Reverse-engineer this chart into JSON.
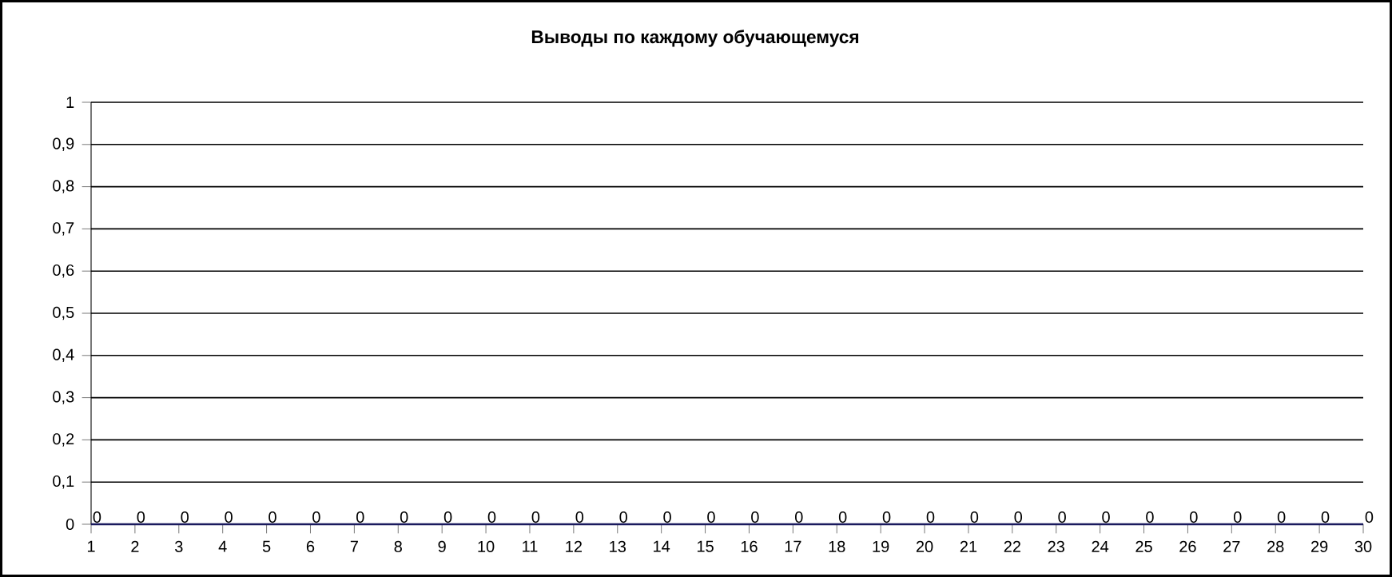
{
  "chart_data": {
    "type": "line",
    "title": "Выводы по каждому обучающемуся",
    "categories": [
      "1",
      "2",
      "3",
      "4",
      "5",
      "6",
      "7",
      "8",
      "9",
      "10",
      "11",
      "12",
      "13",
      "14",
      "15",
      "16",
      "17",
      "18",
      "19",
      "20",
      "21",
      "22",
      "23",
      "24",
      "25",
      "26",
      "27",
      "28",
      "29",
      "30"
    ],
    "series": [
      {
        "color": "#1a1a5e",
        "values": [
          0,
          0,
          0,
          0,
          0,
          0,
          0,
          0,
          0,
          0,
          0,
          0,
          0,
          0,
          0,
          0,
          0,
          0,
          0,
          0,
          0,
          0,
          0,
          0,
          0,
          0,
          0,
          0,
          0,
          0
        ],
        "value_labels": [
          "0",
          "0",
          "0",
          "0",
          "0",
          "0",
          "0",
          "0",
          "0",
          "0",
          "0",
          "0",
          "0",
          "0",
          "0",
          "0",
          "0",
          "0",
          "0",
          "0",
          "0",
          "0",
          "0",
          "0",
          "0",
          "0",
          "0",
          "0",
          "0",
          "0"
        ]
      }
    ],
    "ylim": [
      0,
      1
    ],
    "yticks": [
      {
        "value": 0,
        "label": "0"
      },
      {
        "value": 0.1,
        "label": "0,1"
      },
      {
        "value": 0.2,
        "label": "0,2"
      },
      {
        "value": 0.3,
        "label": "0,3"
      },
      {
        "value": 0.4,
        "label": "0,4"
      },
      {
        "value": 0.5,
        "label": "0,5"
      },
      {
        "value": 0.6,
        "label": "0,6"
      },
      {
        "value": 0.7,
        "label": "0,7"
      },
      {
        "value": 0.8,
        "label": "0,8"
      },
      {
        "value": 0.9,
        "label": "0,9"
      },
      {
        "value": 1,
        "label": "1"
      }
    ],
    "grid": "y",
    "marker": "none",
    "line_style": "solid"
  }
}
